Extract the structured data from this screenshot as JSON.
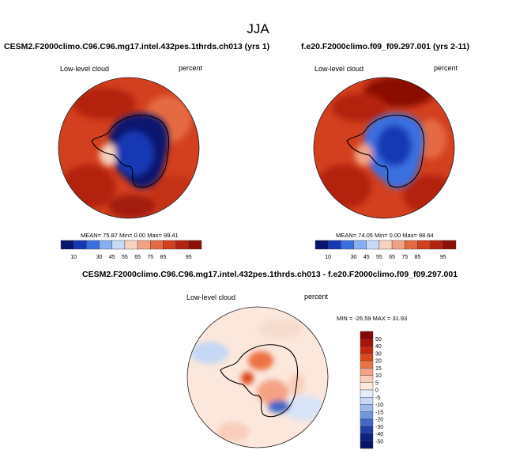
{
  "title": "JJA",
  "panels": [
    {
      "case_title": "CESM2.F2000climo.C96.C96.mg17.intel.432pes.1thrds.ch013 (yrs 1)",
      "variable": "Low-level cloud",
      "units": "percent",
      "stats": {
        "mean_label": "MEAN=",
        "mean": "75.87",
        "min_label": "Min=",
        "min": "0.00",
        "max_label": "Max=",
        "max": "99.41"
      },
      "colorbar_ticks": [
        "10",
        "30",
        "45",
        "55",
        "65",
        "75",
        "85",
        "95"
      ]
    },
    {
      "case_title": "f.e20.F2000climo.f09_f09.297.001 (yrs 2-11)",
      "variable": "Low-level cloud",
      "units": "percent",
      "stats": {
        "mean_label": "MEAN=",
        "mean": "74.05",
        "min_label": "Min=",
        "min": "0.00",
        "max_label": "Max=",
        "max": "98.64"
      },
      "colorbar_ticks": [
        "10",
        "30",
        "45",
        "55",
        "65",
        "75",
        "85",
        "95"
      ]
    }
  ],
  "diff": {
    "title": "CESM2.F2000climo.C96.C96.mg17.intel.432pes.1thrds.ch013 - f.e20.F2000climo.f09_f09.297.001",
    "variable": "Low-level cloud",
    "units": "percent",
    "stats": "MIN = -26.59 MAX = 31.93",
    "colorbar_labels": [
      "50",
      "40",
      "30",
      "20",
      "15",
      "10",
      "5",
      "0",
      "-5",
      "-10",
      "-15",
      "-20",
      "-30",
      "-40",
      "-50"
    ]
  },
  "colors": {
    "seq": [
      "#08156e",
      "#1738b5",
      "#3a6fe0",
      "#86aef0",
      "#c7daf7",
      "#f7d2bf",
      "#f2a284",
      "#e56a43",
      "#d3401f",
      "#b32410",
      "#8b0f06"
    ],
    "div": [
      "#850707",
      "#a81208",
      "#c4280e",
      "#db4a1f",
      "#ec7345",
      "#f5a184",
      "#f9cdb9",
      "#fde9df",
      "#e5eefa",
      "#c5d8f5",
      "#9cbbec",
      "#7096dd",
      "#4568c5",
      "#2240a3",
      "#0e2080",
      "#091466"
    ]
  }
}
